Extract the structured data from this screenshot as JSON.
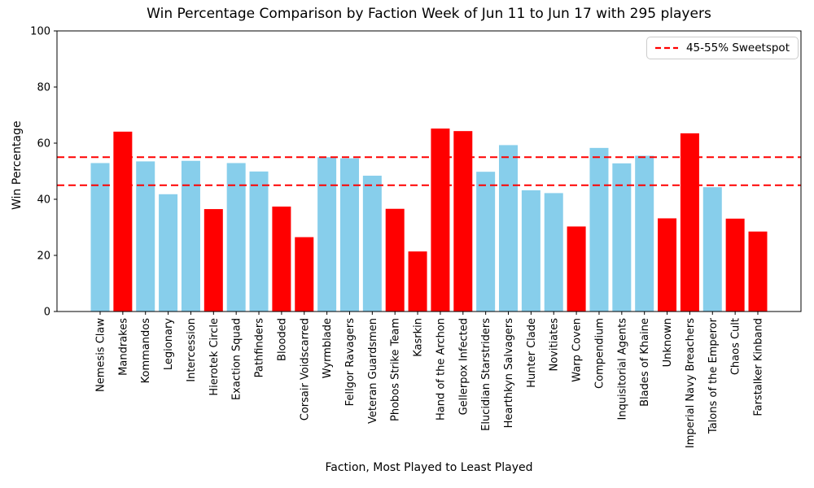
{
  "chart_data": {
    "type": "bar",
    "title": "Win Percentage Comparison by Faction Week of Jun 11 to Jun 17 with 295 players",
    "xlabel": "Faction, Most Played to Least Played",
    "ylabel": "Win Percentage",
    "ylim": [
      0,
      100
    ],
    "yticks": [
      0,
      20,
      40,
      60,
      80,
      100
    ],
    "grid": false,
    "categories": [
      "Nemesis Claw",
      "Mandrakes",
      "Kommandos",
      "Legionary",
      "Intercession",
      "Hierotek Circle",
      "Exaction Squad",
      "Pathfinders",
      "Blooded",
      "Corsair Voidscarred",
      "Wyrmblade",
      "Fellgor Ravagers",
      "Veteran Guardsmen",
      "Phobos Strike Team",
      "Kasrkin",
      "Hand of the Archon",
      "Gellerpox Infected",
      "Elucidian Starstriders",
      "Hearthkyn Salvagers",
      "Hunter Clade",
      "Novitiates",
      "Warp Coven",
      "Compendium",
      "Inquisitorial Agents",
      "Blades of Khaine",
      "Unknown",
      "Imperial Navy Breachers",
      "Talons of the Emperor",
      "Chaos Cult",
      "Farstalker Kinband"
    ],
    "series": [
      {
        "name": "Win Percentage",
        "values": [
          52.9,
          64.1,
          53.5,
          41.8,
          53.7,
          36.5,
          52.9,
          49.9,
          37.4,
          26.5,
          55.0,
          54.6,
          48.4,
          36.6,
          21.4,
          65.2,
          64.3,
          49.8,
          59.3,
          43.2,
          42.2,
          30.3,
          58.3,
          52.8,
          55.5,
          33.2,
          63.5,
          44.3,
          33.1,
          28.5
        ]
      }
    ],
    "bar_colors": [
      "#87ceeb",
      "#ff0000",
      "#87ceeb",
      "#87ceeb",
      "#87ceeb",
      "#ff0000",
      "#87ceeb",
      "#87ceeb",
      "#ff0000",
      "#ff0000",
      "#87ceeb",
      "#87ceeb",
      "#87ceeb",
      "#ff0000",
      "#ff0000",
      "#ff0000",
      "#ff0000",
      "#87ceeb",
      "#87ceeb",
      "#87ceeb",
      "#87ceeb",
      "#ff0000",
      "#87ceeb",
      "#87ceeb",
      "#87ceeb",
      "#ff0000",
      "#ff0000",
      "#87ceeb",
      "#ff0000",
      "#ff0000"
    ],
    "colors": {
      "sweetspot_line": "#ff0000",
      "bar_normal": "#87ceeb",
      "bar_outlier": "#ff0000"
    },
    "reference_lines": [
      {
        "y": 45,
        "color": "#ff0000",
        "style": "dashed"
      },
      {
        "y": 55,
        "color": "#ff0000",
        "style": "dashed"
      }
    ],
    "legend": {
      "position": "upper right",
      "entries": [
        {
          "label": "45-55% Sweetspot",
          "style": "dashed",
          "color": "#ff0000"
        }
      ]
    }
  }
}
